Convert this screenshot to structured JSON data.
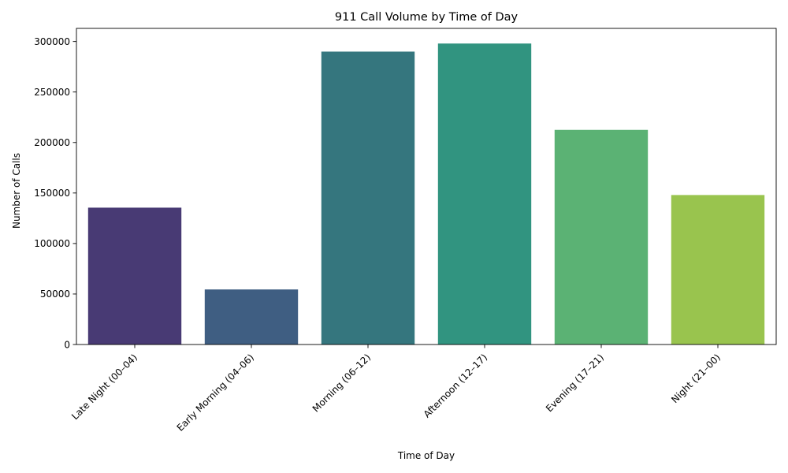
{
  "chart_data": {
    "type": "bar",
    "title": "911 Call Volume by Time of Day",
    "xlabel": "Time of Day",
    "ylabel": "Number of Calls",
    "categories": [
      "Late Night (00–04)",
      "Early Morning (04–06)",
      "Morning (06–12)",
      "Afternoon (12–17)",
      "Evening (17–21)",
      "Night (21–00)"
    ],
    "values": [
      135500,
      54500,
      290000,
      298000,
      212500,
      148000
    ],
    "colors": [
      "#483a74",
      "#3f5e82",
      "#35767e",
      "#319480",
      "#5bb274",
      "#99c44e"
    ],
    "ylim": [
      0,
      313000
    ],
    "yticks": [
      0,
      50000,
      100000,
      150000,
      200000,
      250000,
      300000
    ],
    "grid": false,
    "legend": "none"
  }
}
